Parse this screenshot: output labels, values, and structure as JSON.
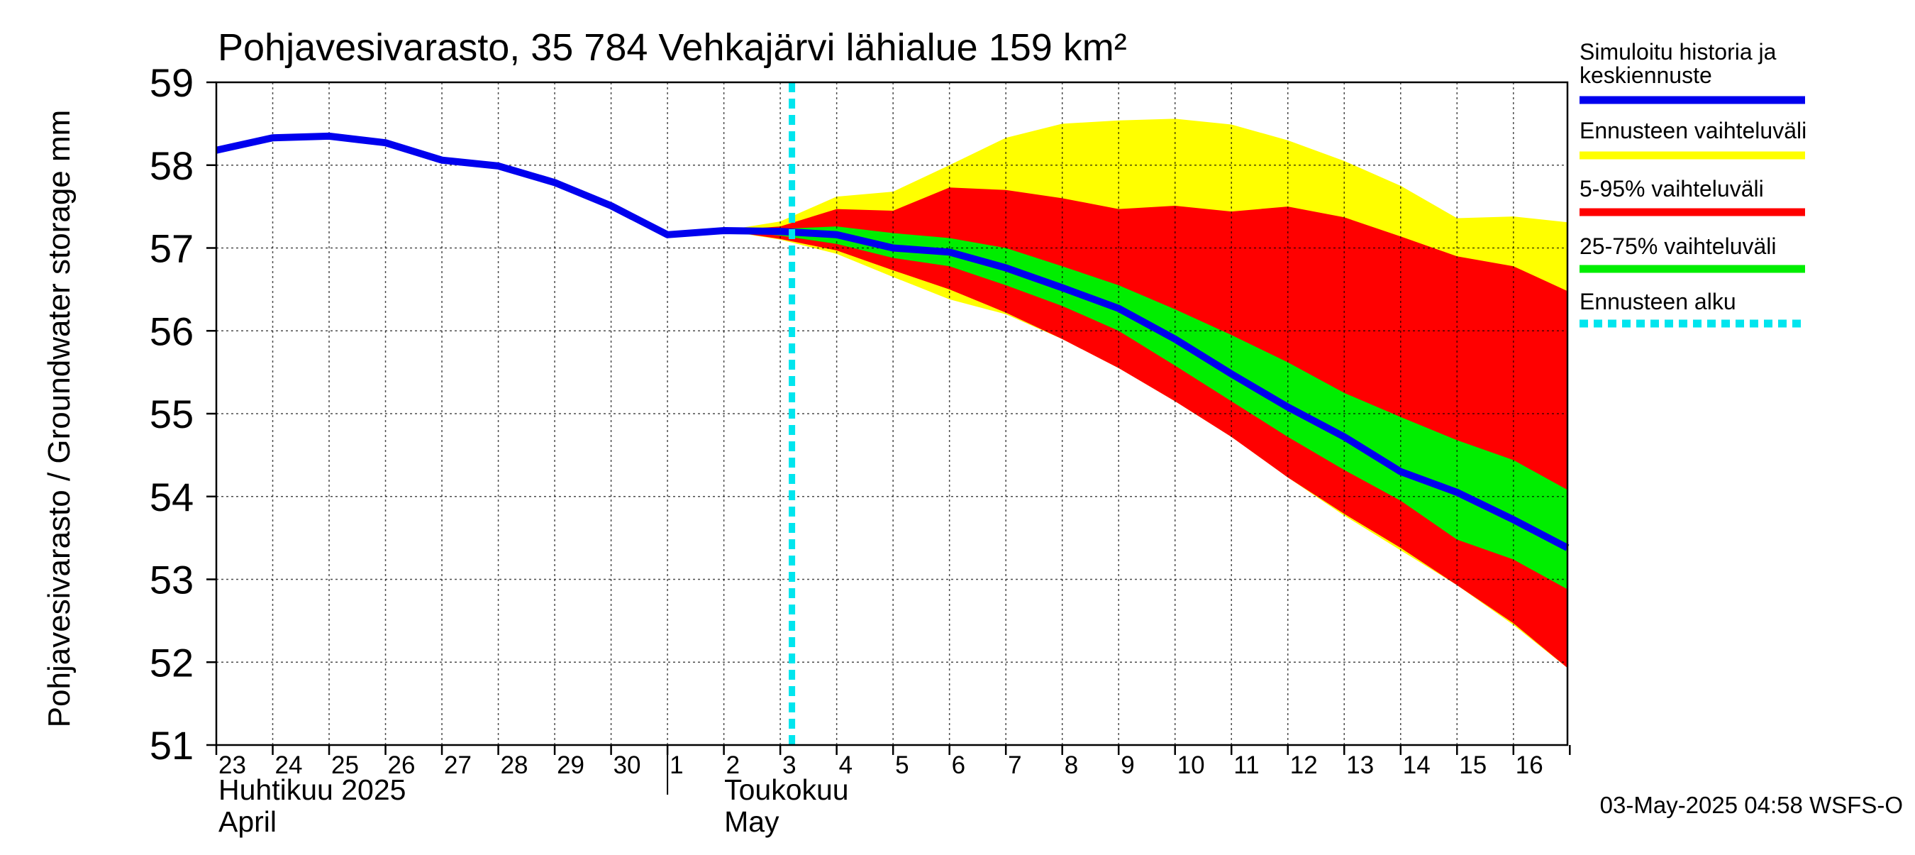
{
  "colors": {
    "history": "#0000ee",
    "full_range": "#ffff00",
    "p5_95": "#ff0000",
    "p25_75": "#00ee00",
    "forecast_start": "#00e5ee"
  },
  "chart_data": {
    "type": "area",
    "title": "Pohjavesivarasto, 35 784 Vehkajärvi lähialue 159 km²",
    "ylabel": "Pohjavesivarasto / Groundwater storage   mm",
    "ylim": [
      51,
      59
    ],
    "yticks": [
      51,
      52,
      53,
      54,
      55,
      56,
      57,
      58,
      59
    ],
    "xlim": [
      "2025-04-23",
      "2025-05-16T23:00"
    ],
    "x_day_labels": [
      "23",
      "24",
      "25",
      "26",
      "27",
      "28",
      "29",
      "30",
      "1",
      "2",
      "3",
      "4",
      "5",
      "6",
      "7",
      "8",
      "9",
      "10",
      "11",
      "12",
      "13",
      "14",
      "15",
      "16"
    ],
    "month_labels": [
      {
        "fi": "Huhtikuu  2025",
        "en": "April"
      },
      {
        "fi": "Toukokuu",
        "en": "May"
      }
    ],
    "grid": true,
    "legend_position": "right",
    "legend": [
      {
        "label": "Simuloitu historia ja keskiennuste",
        "line1": "Simuloitu historia ja",
        "line2": "keskiennuste",
        "color": "#0000ee",
        "style": "solid"
      },
      {
        "label": "Ennusteen vaihteluväli",
        "color": "#ffff00",
        "style": "solid"
      },
      {
        "label": "5-95% vaihteluväli",
        "color": "#ff0000",
        "style": "solid"
      },
      {
        "label": "25-75% vaihteluväli",
        "color": "#00ee00",
        "style": "solid"
      },
      {
        "label": "Ennusteen alku",
        "color": "#00e5ee",
        "style": "dashed"
      }
    ],
    "forecast_start": "2025-05-03T04:58",
    "history": {
      "x": [
        "2025-04-23",
        "2025-04-24",
        "2025-04-25",
        "2025-04-26",
        "2025-04-27",
        "2025-04-28",
        "2025-04-29",
        "2025-04-30",
        "2025-05-01",
        "2025-05-02",
        "2025-05-03"
      ],
      "y": [
        58.18,
        58.33,
        58.35,
        58.27,
        58.06,
        57.99,
        57.79,
        57.51,
        57.16,
        57.21,
        57.2
      ]
    },
    "forecast_median": {
      "x": [
        "2025-05-03",
        "2025-05-04",
        "2025-05-05",
        "2025-05-06",
        "2025-05-07",
        "2025-05-08",
        "2025-05-09",
        "2025-05-10",
        "2025-05-11",
        "2025-05-12",
        "2025-05-13",
        "2025-05-14",
        "2025-05-15",
        "2025-05-16",
        "2025-05-16T23:00"
      ],
      "y": [
        57.2,
        57.16,
        57.0,
        56.95,
        56.76,
        56.52,
        56.27,
        55.9,
        55.48,
        55.08,
        54.72,
        54.3,
        54.05,
        53.72,
        53.38
      ]
    },
    "bands_x": [
      "2025-05-02",
      "2025-05-03",
      "2025-05-04",
      "2025-05-05",
      "2025-05-06",
      "2025-05-07",
      "2025-05-08",
      "2025-05-09",
      "2025-05-10",
      "2025-05-11",
      "2025-05-12",
      "2025-05-13",
      "2025-05-14",
      "2025-05-15",
      "2025-05-16",
      "2025-05-16T23:00"
    ],
    "range_full": {
      "upper": [
        57.21,
        57.32,
        57.62,
        57.68,
        58.0,
        58.33,
        58.5,
        58.54,
        58.56,
        58.49,
        58.3,
        58.05,
        57.75,
        57.36,
        57.38,
        57.31
      ],
      "lower": [
        57.21,
        57.1,
        56.93,
        56.65,
        56.38,
        56.2,
        55.9,
        55.55,
        55.15,
        54.72,
        54.23,
        53.77,
        53.35,
        52.93,
        52.45,
        51.93
      ]
    },
    "range_5_95": {
      "upper": [
        57.21,
        57.26,
        57.47,
        57.45,
        57.73,
        57.7,
        57.6,
        57.47,
        57.51,
        57.44,
        57.5,
        57.37,
        57.14,
        56.9,
        56.78,
        56.48
      ],
      "lower": [
        57.21,
        57.11,
        56.97,
        56.73,
        56.5,
        56.22,
        55.9,
        55.55,
        55.15,
        54.72,
        54.23,
        53.79,
        53.38,
        52.93,
        52.47,
        51.93
      ]
    },
    "range_25_75": {
      "upper": [
        57.21,
        57.23,
        57.26,
        57.18,
        57.12,
        57.0,
        56.78,
        56.55,
        56.26,
        55.95,
        55.62,
        55.25,
        54.96,
        54.68,
        54.44,
        54.08
      ],
      "lower": [
        57.21,
        57.15,
        57.05,
        56.88,
        56.78,
        56.55,
        56.3,
        56.0,
        55.58,
        55.15,
        54.72,
        54.32,
        53.95,
        53.48,
        53.24,
        52.88
      ]
    }
  },
  "footer": {
    "timestamp": "03-May-2025 04:58 WSFS-O"
  }
}
